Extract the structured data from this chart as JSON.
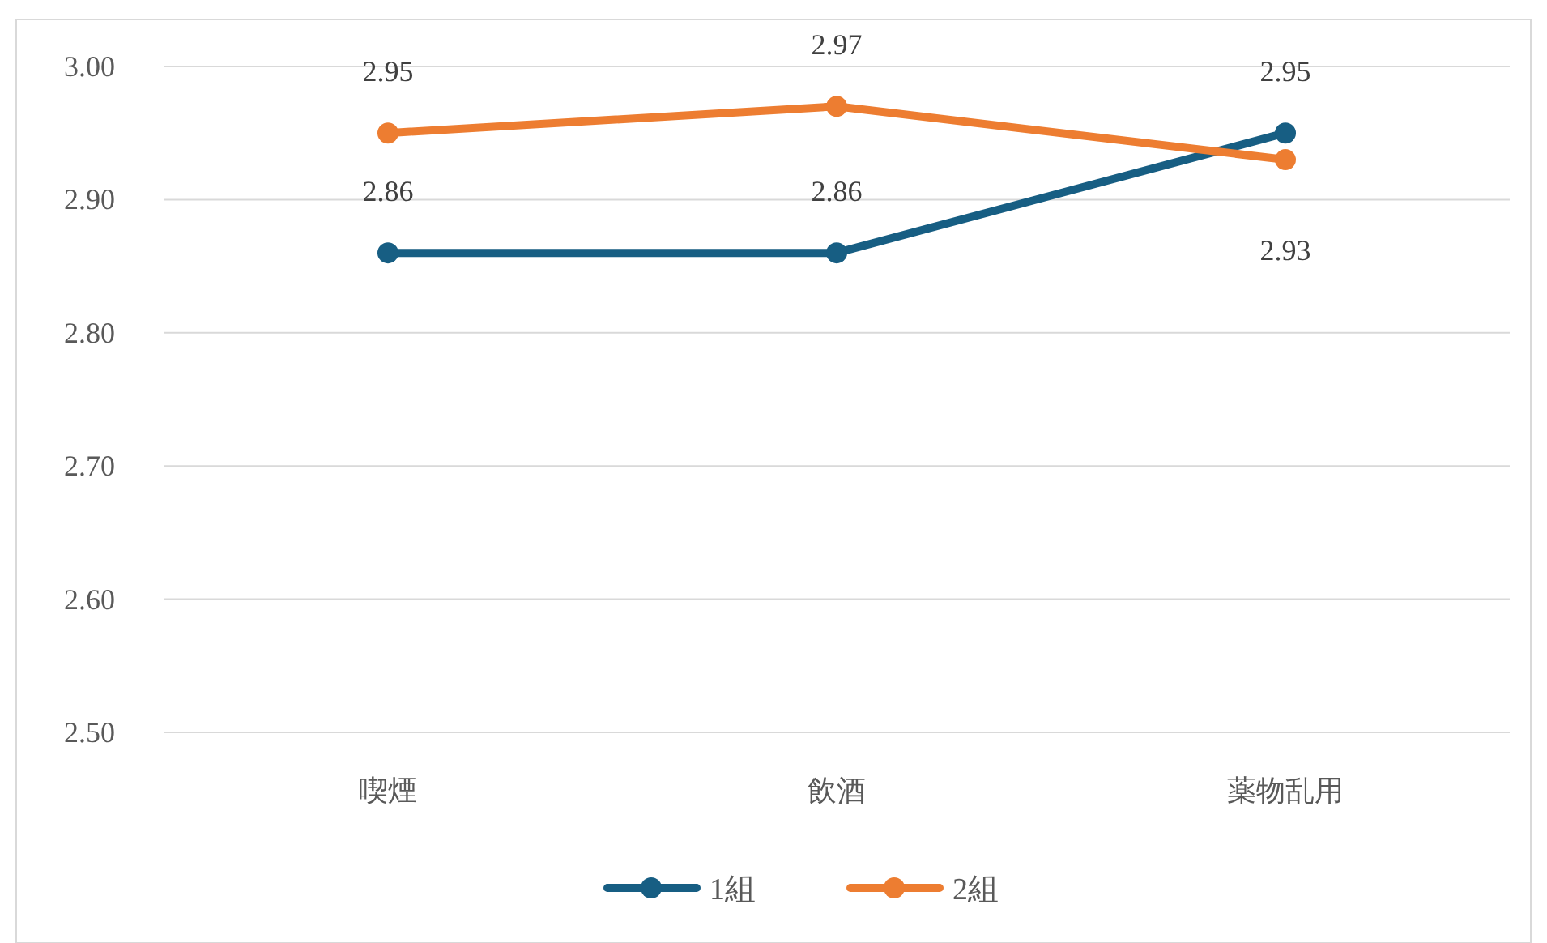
{
  "chart_data": {
    "type": "line",
    "categories": [
      "喫煙",
      "飲酒",
      "薬物乱用"
    ],
    "series": [
      {
        "name": "1組",
        "color": "#175e83",
        "values": [
          2.86,
          2.86,
          2.95
        ]
      },
      {
        "name": "2組",
        "color": "#ed7d31",
        "values": [
          2.95,
          2.97,
          2.93
        ]
      }
    ],
    "ylim": [
      2.5,
      3.0
    ],
    "yticks": [
      {
        "value": 2.5,
        "label": "2.50"
      },
      {
        "value": 2.6,
        "label": "2.60"
      },
      {
        "value": 2.7,
        "label": "2.70"
      },
      {
        "value": 2.8,
        "label": "2.80"
      },
      {
        "value": 2.9,
        "label": "2.90"
      },
      {
        "value": 3.0,
        "label": "3.00"
      }
    ],
    "grid": "y",
    "legend": "bottom",
    "marker": "circle",
    "line_style": "solid",
    "data_labels": true
  }
}
